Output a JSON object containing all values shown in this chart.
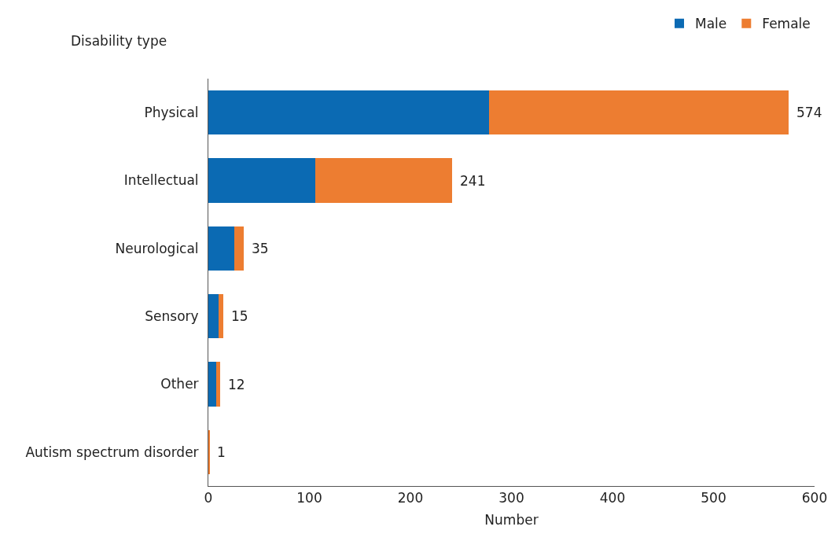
{
  "chart_data": {
    "type": "bar",
    "orientation": "horizontal",
    "stacked": true,
    "xlabel": "Number",
    "ylabel": "Disability type",
    "categories": [
      "Physical",
      "Intellectual",
      "Neurological",
      "Sensory",
      "Other",
      "Autism spectrum disorder"
    ],
    "series": [
      {
        "name": "Male",
        "color": "#0b6ab3",
        "values": [
          278,
          106,
          26,
          10,
          8,
          0
        ]
      },
      {
        "name": "Female",
        "color": "#ed7d31",
        "values": [
          296,
          135,
          9,
          5,
          4,
          1
        ]
      }
    ],
    "totals": [
      "574",
      "241",
      "35",
      "15",
      "12",
      "1"
    ],
    "xlim": [
      0,
      600
    ],
    "xticks": [
      0,
      100,
      200,
      300,
      400,
      500,
      600
    ],
    "grid": false,
    "legend": "top right"
  }
}
